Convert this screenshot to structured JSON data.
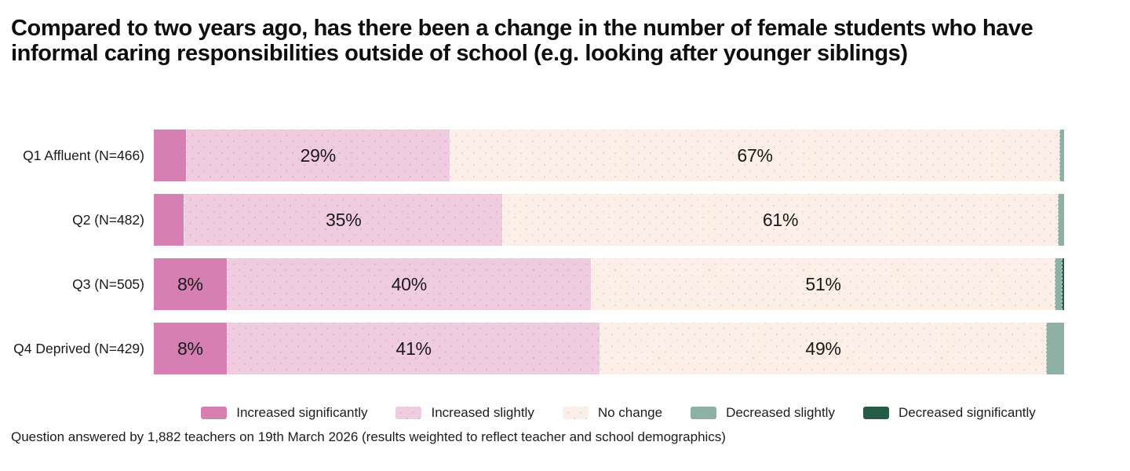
{
  "title": "Compared to two years ago, has there been a change in the number of female students who have informal caring responsibilities outside of school (e.g. looking after younger siblings)",
  "footnote": "Question answered by 1,882 teachers on 19th March 2026 (results weighted to reflect teacher and school demographics)",
  "colors": {
    "background": "#ffffff",
    "text": "#141414"
  },
  "chart_data": {
    "type": "bar",
    "variant": "horizontal-stacked-100",
    "title": "Compared to two years ago, has there been a change in the number of female students who have informal caring responsibilities outside of school (e.g. looking after younger siblings)",
    "categories": [
      "Q1 Affluent (N=466)",
      "Q2 (N=482)",
      "Q3 (N=505)",
      "Q4 Deprived (N=429)"
    ],
    "series": [
      {
        "name": "Increased significantly",
        "color": "#d67fb2",
        "dot_color": "",
        "values": [
          3.5,
          3.3,
          8,
          8
        ],
        "labels": [
          "",
          "",
          "8%",
          "8%"
        ]
      },
      {
        "name": "Increased slightly",
        "color": "#efcce0",
        "dot_color": "rgba(205,138,177,0.38)",
        "values": [
          29,
          35,
          40,
          41
        ],
        "labels": [
          "29%",
          "35%",
          "40%",
          "41%"
        ]
      },
      {
        "name": "No change",
        "color": "#fcefe7",
        "dot_color": "rgba(228,166,160,0.38)",
        "values": [
          67,
          61,
          51,
          49
        ],
        "labels": [
          "67%",
          "61%",
          "51%",
          "49%"
        ]
      },
      {
        "name": "Decreased slightly",
        "color": "#8fb1a4",
        "dot_color": "",
        "values": [
          0.5,
          0.7,
          0.7,
          2
        ],
        "labels": [
          "",
          "",
          "",
          ""
        ]
      },
      {
        "name": "Decreased significantly",
        "color": "#265b46",
        "dot_color": "",
        "values": [
          0,
          0,
          0.3,
          0
        ],
        "labels": [
          "",
          "",
          "",
          ""
        ]
      }
    ],
    "xlim": [
      0,
      100
    ],
    "value_suffix": "%",
    "grid": false,
    "legend_position": "bottom"
  }
}
